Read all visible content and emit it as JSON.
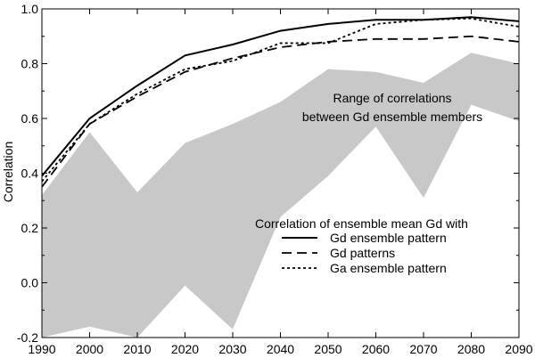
{
  "chart_data": {
    "type": "line",
    "xlabel": "",
    "ylabel": "Correlation",
    "xlim": [
      1990,
      2090
    ],
    "ylim": [
      -0.2,
      1.0
    ],
    "x": [
      1990,
      2000,
      2010,
      2020,
      2030,
      2040,
      2050,
      2060,
      2070,
      2080,
      2090
    ],
    "x_tick_labels": [
      "1990",
      "2000",
      "2010",
      "2020",
      "2030",
      "2040",
      "2050",
      "2060",
      "2070",
      "2080",
      "2090"
    ],
    "y_ticks": [
      -0.2,
      0.0,
      0.2,
      0.4,
      0.6,
      0.8,
      1.0
    ],
    "y_tick_labels": [
      "-0.2",
      "0.0",
      "0.2",
      "0.4",
      "0.6",
      "0.8",
      "1.0"
    ],
    "band": {
      "color": "#c8c8c8",
      "upper": [
        0.32,
        0.55,
        0.33,
        0.51,
        0.58,
        0.66,
        0.78,
        0.77,
        0.73,
        0.84,
        0.8
      ],
      "lower": [
        -0.2,
        -0.16,
        -0.2,
        -0.01,
        -0.17,
        0.24,
        0.39,
        0.57,
        0.31,
        0.65,
        0.59
      ]
    },
    "series": [
      {
        "name": "Gd ensemble pattern",
        "style": "solid",
        "values": [
          0.39,
          0.6,
          0.72,
          0.83,
          0.87,
          0.92,
          0.945,
          0.96,
          0.96,
          0.97,
          0.955
        ]
      },
      {
        "name": "Gd patterns",
        "style": "dashed",
        "values": [
          0.35,
          0.58,
          0.68,
          0.77,
          0.82,
          0.86,
          0.88,
          0.89,
          0.89,
          0.9,
          0.88
        ]
      },
      {
        "name": "Ga ensemble pattern",
        "style": "dotted",
        "values": [
          0.37,
          0.58,
          0.69,
          0.78,
          0.81,
          0.875,
          0.875,
          0.945,
          0.96,
          0.965,
          0.935
        ]
      }
    ],
    "band_annotation": [
      "Range of correlations",
      "between Gd ensemble members"
    ],
    "legend_title": "Correlation of ensemble mean Gd with",
    "legend_position": "lower-right",
    "grid": false
  }
}
